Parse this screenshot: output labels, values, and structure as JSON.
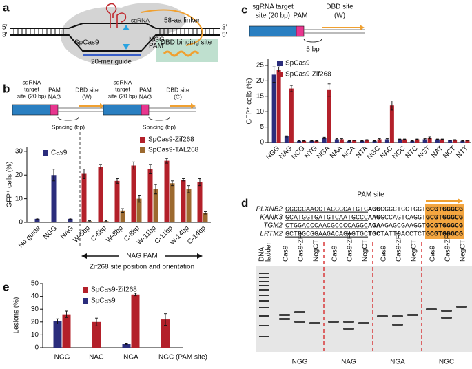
{
  "panel_labels": [
    "a",
    "b",
    "c",
    "d",
    "e"
  ],
  "panel_a": {
    "sgrna": "sgRNA",
    "linker": "58-aa linker",
    "protein": "SpCas9",
    "dbd": "DBD binding site",
    "pam_seq": "NGG",
    "pam": "PAM",
    "guide": "20-mer guide",
    "ends": [
      "5′",
      "3′",
      "3′",
      "5′"
    ]
  },
  "panel_b_diagrams": [
    {
      "target": [
        "sgRNA",
        "target",
        "site (20 bp)"
      ],
      "pam": "PAM",
      "pam_seq": "NAG",
      "dbd": [
        "DBD site",
        "(W)"
      ],
      "spacing": "Spacing (bp)"
    },
    {
      "target": [
        "sgRNA",
        "target",
        "site (20 bp)"
      ],
      "pam": "PAM",
      "pam_seq": "NAG",
      "dbd": [
        "DBD site",
        "(C)"
      ],
      "spacing": "Spacing (bp)"
    }
  ],
  "panel_b_annotation": {
    "pam": "NAG PAM",
    "orientation": "Zif268 site position and orientation"
  },
  "panel_c_diagram": {
    "target": [
      "sgRNA target",
      "site (20 bp)"
    ],
    "pam": "PAM",
    "dbd": [
      "DBD site",
      "(W)"
    ],
    "spacing": "5 bp"
  },
  "panel_d": {
    "rows": [
      {
        "gene": "PLXNB2",
        "guide": "GGCCCAACCTAGGGCATGTG",
        "pam": "AGG",
        "spacer": "CGGCTGCTGGT",
        "dbd": "GCGTGGGCG"
      },
      {
        "gene": "KANK3",
        "guide": "GCATGGTGATGTCAATGCCC",
        "pam": "AAG",
        "spacer": "GCCAGTCAGGT",
        "dbd": "GCGTGGGCG"
      },
      {
        "gene": "TGM2",
        "guide": "CTGGACCCAACGCCCCAGGC",
        "pam": "AGA",
        "spacer": "AGAGCGAAGGT",
        "dbd": "GCGTGGGCG"
      },
      {
        "gene": "LRTM2",
        "guide": "GCTGGCGGAAGACAGAGTGC",
        "pam": "TGC",
        "spacer": "TATTCACCTCT",
        "dbd": "GCGTGGGCG"
      }
    ],
    "ladder": [
      "DNA",
      "ladder"
    ],
    "lanes": [
      "Cas9",
      "Cas9-ZFP",
      "NegCT"
    ],
    "groups": [
      "NGG",
      "NAG",
      "NGA",
      "NGC"
    ]
  },
  "chart_data": [
    {
      "type": "bar",
      "y_label": "GFP⁺ cells (%)",
      "categories": [
        "No guide",
        "NGG",
        "NAG",
        "W-5bp",
        "C-5bp",
        "W-8bp",
        "C-8bp",
        "W-11bp",
        "C-11bp",
        "W-14bp",
        "C-14bp"
      ],
      "series": [
        {
          "name": "Cas9",
          "color": "#2b2d7c",
          "values": [
            1.5,
            20,
            1.5,
            null,
            null,
            null,
            null,
            null,
            null,
            null,
            null
          ],
          "errors": [
            0.3,
            2.5,
            0.3,
            null,
            null,
            null,
            null,
            null,
            null,
            null,
            null
          ]
        },
        {
          "name": "SpCas9-Zif268",
          "color": "#b3202a",
          "values": [
            null,
            null,
            null,
            20.5,
            23.5,
            17.5,
            24,
            22.5,
            26,
            18,
            17
          ],
          "errors": [
            null,
            null,
            null,
            2,
            1,
            1,
            1.5,
            2,
            1,
            0.5,
            1.5
          ]
        },
        {
          "name": "SpCas9-TAL268",
          "color": "#9c6a2f",
          "values": [
            null,
            null,
            null,
            0.5,
            0.5,
            5,
            10,
            14,
            16.5,
            14,
            4
          ],
          "errors": [
            null,
            null,
            null,
            0.2,
            0.2,
            0.8,
            1.5,
            2,
            1,
            1.5,
            0.5
          ]
        }
      ],
      "ylim": [
        0,
        32
      ],
      "yticks": [
        0,
        10,
        20,
        30
      ]
    },
    {
      "type": "bar",
      "y_label": "GFP⁺ cells (%)",
      "x_label": "PAM site",
      "categories": [
        "NGG",
        "NAG",
        "NCG",
        "NTG",
        "NGA",
        "NAA",
        "NCA",
        "NTA",
        "NGC",
        "NAC",
        "NCC",
        "NTC",
        "NGT",
        "NAT",
        "NCT",
        "NTT"
      ],
      "series": [
        {
          "name": "SpCas9",
          "color": "#2b2d7c",
          "values": [
            22,
            2,
            0.5,
            0.5,
            1.5,
            1,
            0.5,
            0.5,
            0.5,
            1,
            1,
            0.5,
            1,
            1,
            0.7,
            0.5
          ],
          "errors": [
            2.5,
            0.2,
            0.1,
            0.1,
            0.2,
            0.2,
            0.1,
            0.1,
            0.1,
            0.2,
            0.1,
            0.1,
            0.2,
            0.1,
            0.1,
            0.1
          ]
        },
        {
          "name": "SpCas9-Zif268",
          "color": "#b3202a",
          "values": [
            23.5,
            17.5,
            0.5,
            0.5,
            17,
            1,
            0.7,
            0.8,
            1,
            12,
            1,
            1,
            1.5,
            1,
            0.8,
            0.7
          ],
          "errors": [
            1,
            1,
            0.1,
            0.1,
            2,
            0.2,
            0.1,
            0.1,
            0.2,
            1.5,
            0.1,
            0.1,
            0.3,
            0.1,
            0.1,
            0.1
          ]
        }
      ],
      "ylim": [
        0,
        27
      ],
      "yticks": [
        0,
        5,
        10,
        15,
        20,
        25
      ]
    },
    {
      "type": "bar",
      "y_label": "Lesions (%)",
      "categories": [
        "NGG",
        "NAG",
        "NGA",
        "NGC (PAM site)"
      ],
      "series": [
        {
          "name": "SpCas9",
          "color": "#2b2d7c",
          "values": [
            20.5,
            null,
            3,
            null
          ],
          "errors": [
            2,
            null,
            0.5,
            null
          ]
        },
        {
          "name": "SpCas9-Zif268",
          "color": "#b3202a",
          "values": [
            26,
            20,
            41.5,
            22
          ],
          "errors": [
            2.5,
            3,
            1,
            4.5
          ]
        }
      ],
      "ylim": [
        0,
        50
      ],
      "yticks": [
        0,
        10,
        20,
        30,
        40,
        50
      ]
    }
  ]
}
